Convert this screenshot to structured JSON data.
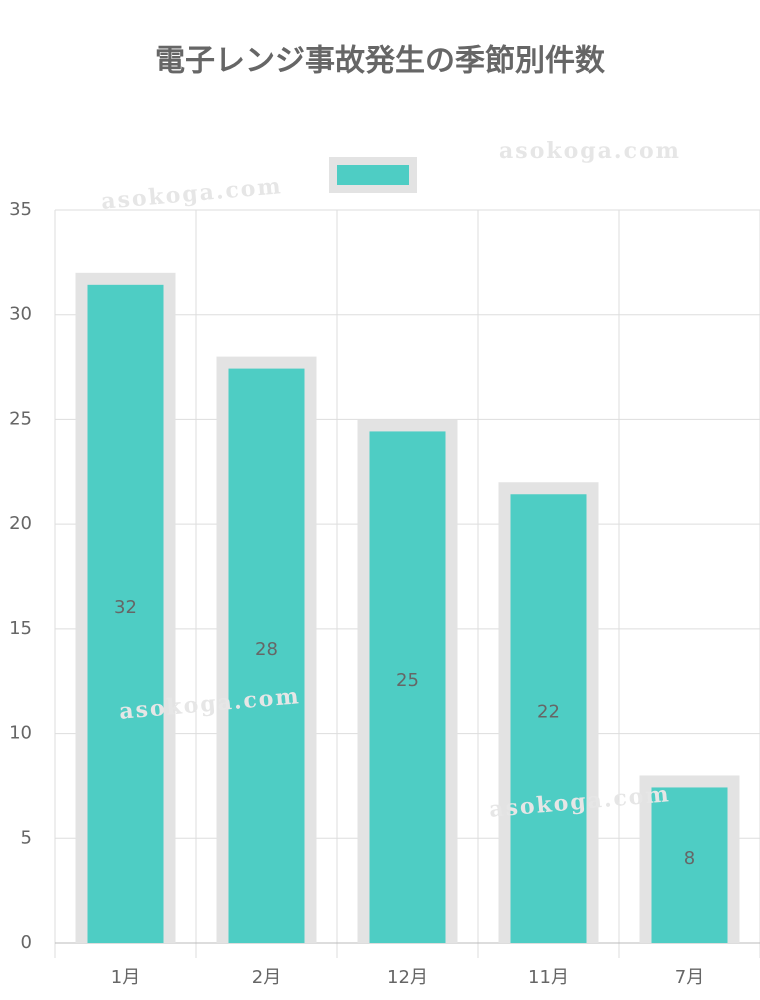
{
  "chart_data": {
    "type": "bar",
    "title": "電子レンジ事故発生の季節別件数",
    "categories": [
      "1月",
      "2月",
      "12月",
      "11月",
      "7月"
    ],
    "values": [
      32,
      28,
      25,
      22,
      8
    ],
    "color": "#4ecdc4",
    "border_color": "#e3e3e3",
    "ylim": [
      0,
      35
    ],
    "yticks": [
      0,
      5,
      10,
      15,
      20,
      25,
      30,
      35
    ],
    "grid": true,
    "watermark": "asokoga.com"
  }
}
